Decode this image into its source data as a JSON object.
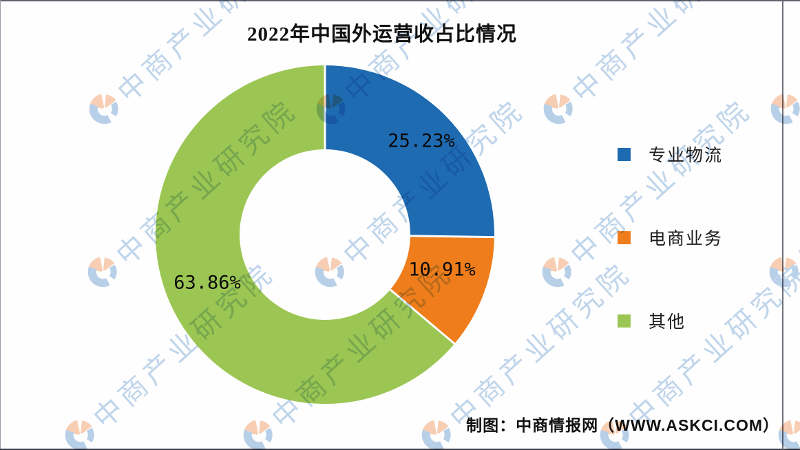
{
  "title": "2022年中国外运营收占比情况",
  "credit": "制图：中商情报网（WWW.ASKCI.COM）",
  "watermark": {
    "text": "中商产业研究院",
    "text_color": "#8db4dd",
    "logo_blue": "#7fa9d6",
    "logo_orange": "#f3a877"
  },
  "legend": [
    {
      "label": "专业物流",
      "color": "#1f6bb2"
    },
    {
      "label": "电商业务",
      "color": "#ef7d1c"
    },
    {
      "label": "其他",
      "color": "#9cc653"
    }
  ],
  "chart_data": {
    "type": "pie",
    "subtype": "donut",
    "title": "2022年中国外运营收占比情况",
    "categories": [
      "专业物流",
      "电商业务",
      "其他"
    ],
    "values": [
      25.23,
      10.91,
      63.86
    ],
    "labels": [
      "25.23%",
      "10.91%",
      "63.86%"
    ],
    "unit": "%",
    "colors": [
      "#1f6bb2",
      "#ef7d1c",
      "#9cc653"
    ],
    "start_angle_deg": 0,
    "direction": "clockwise",
    "inner_radius_ratio": 0.5,
    "legend_position": "right",
    "grid": false
  }
}
